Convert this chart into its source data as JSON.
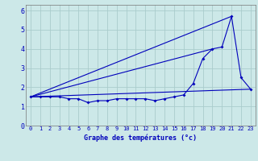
{
  "title": "",
  "xlabel": "Graphe des températures (°c)",
  "ylabel": "",
  "bg_color": "#cce8e8",
  "grid_color": "#aacccc",
  "line_color": "#0000bb",
  "xlim": [
    -0.5,
    23.5
  ],
  "ylim": [
    0,
    6.3
  ],
  "x_ticks": [
    0,
    1,
    2,
    3,
    4,
    5,
    6,
    7,
    8,
    9,
    10,
    11,
    12,
    13,
    14,
    15,
    16,
    17,
    18,
    19,
    20,
    21,
    22,
    23
  ],
  "y_ticks": [
    0,
    1,
    2,
    3,
    4,
    5,
    6
  ],
  "series1_x": [
    0,
    1,
    2,
    3,
    4,
    5,
    6,
    7,
    8,
    9,
    10,
    11,
    12,
    13,
    14,
    15,
    16,
    17,
    18,
    19,
    20,
    21,
    22,
    23
  ],
  "series1_y": [
    1.5,
    1.5,
    1.5,
    1.5,
    1.4,
    1.4,
    1.2,
    1.3,
    1.3,
    1.4,
    1.4,
    1.4,
    1.4,
    1.3,
    1.4,
    1.5,
    1.6,
    2.2,
    3.5,
    4.0,
    4.1,
    5.7,
    2.5,
    1.9
  ],
  "series2_x": [
    0,
    23
  ],
  "series2_y": [
    1.5,
    1.9
  ],
  "series3_x": [
    0,
    19
  ],
  "series3_y": [
    1.5,
    4.0
  ],
  "series4_x": [
    0,
    21
  ],
  "series4_y": [
    1.5,
    5.7
  ],
  "tick_fontsize": 5,
  "xlabel_fontsize": 6,
  "marker_size": 2.0,
  "linewidth": 0.8
}
